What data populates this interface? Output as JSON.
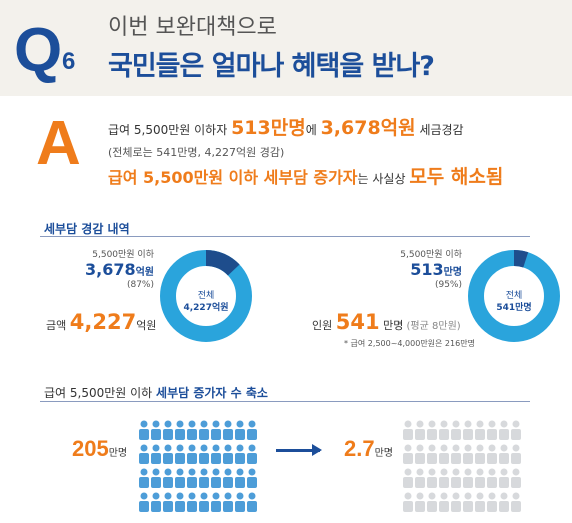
{
  "header": {
    "q_letter": "Q",
    "q_number": "6",
    "line1": "이번 보완대책으로",
    "line2": "국민들은 얼마나 혜택을 받나?"
  },
  "answer": {
    "letter": "A",
    "line1": [
      "급여 5,500만원 이하자 ",
      "513만명",
      "에 ",
      "3,678억원",
      " 세금경감"
    ],
    "line2": "(전체로는 541만명, 4,227억원 경감)",
    "line3": [
      "급여 5,500만원 이하 세부담 증가자",
      "는 사실상 ",
      "모두 해소됨"
    ]
  },
  "section1": {
    "title": "세부담 경감 내역",
    "left": {
      "caption_small": "5,500만원 이하",
      "caption_value": "3,678",
      "caption_unit": "억원",
      "caption_pct": "(87%)",
      "center_top": "전체",
      "center_value": "4,227억원",
      "total_prefix": "금액 ",
      "total_value": "4,227",
      "total_unit": "억원",
      "share": 0.13
    },
    "right": {
      "caption_small": "5,500만원 이하",
      "caption_value": "513",
      "caption_unit": "만명",
      "caption_pct": "(95%)",
      "center_top": "전체",
      "center_value": "541만명",
      "total_prefix": "인원 ",
      "total_value": "541",
      "total_unit": " 만명",
      "total_note": " (평균 8만원)",
      "footnote": "* 급여 2,500~4,000만원은 216만명",
      "share": 0.05
    }
  },
  "section2": {
    "title_plain": "급여 5,500만원 이하 ",
    "title_bold": "세부담 증가자 수 축소",
    "left_value": "205",
    "left_unit": "만명",
    "right_value": "2.7",
    "right_unit": "만명"
  },
  "colors": {
    "navy": "#1c4e9a",
    "orange": "#ef7c1b",
    "donut_light": "#2aa4dc",
    "donut_dark": "#1e4d8c",
    "person_blue": "#4d9dd8",
    "person_gray": "#d7d9dc"
  }
}
